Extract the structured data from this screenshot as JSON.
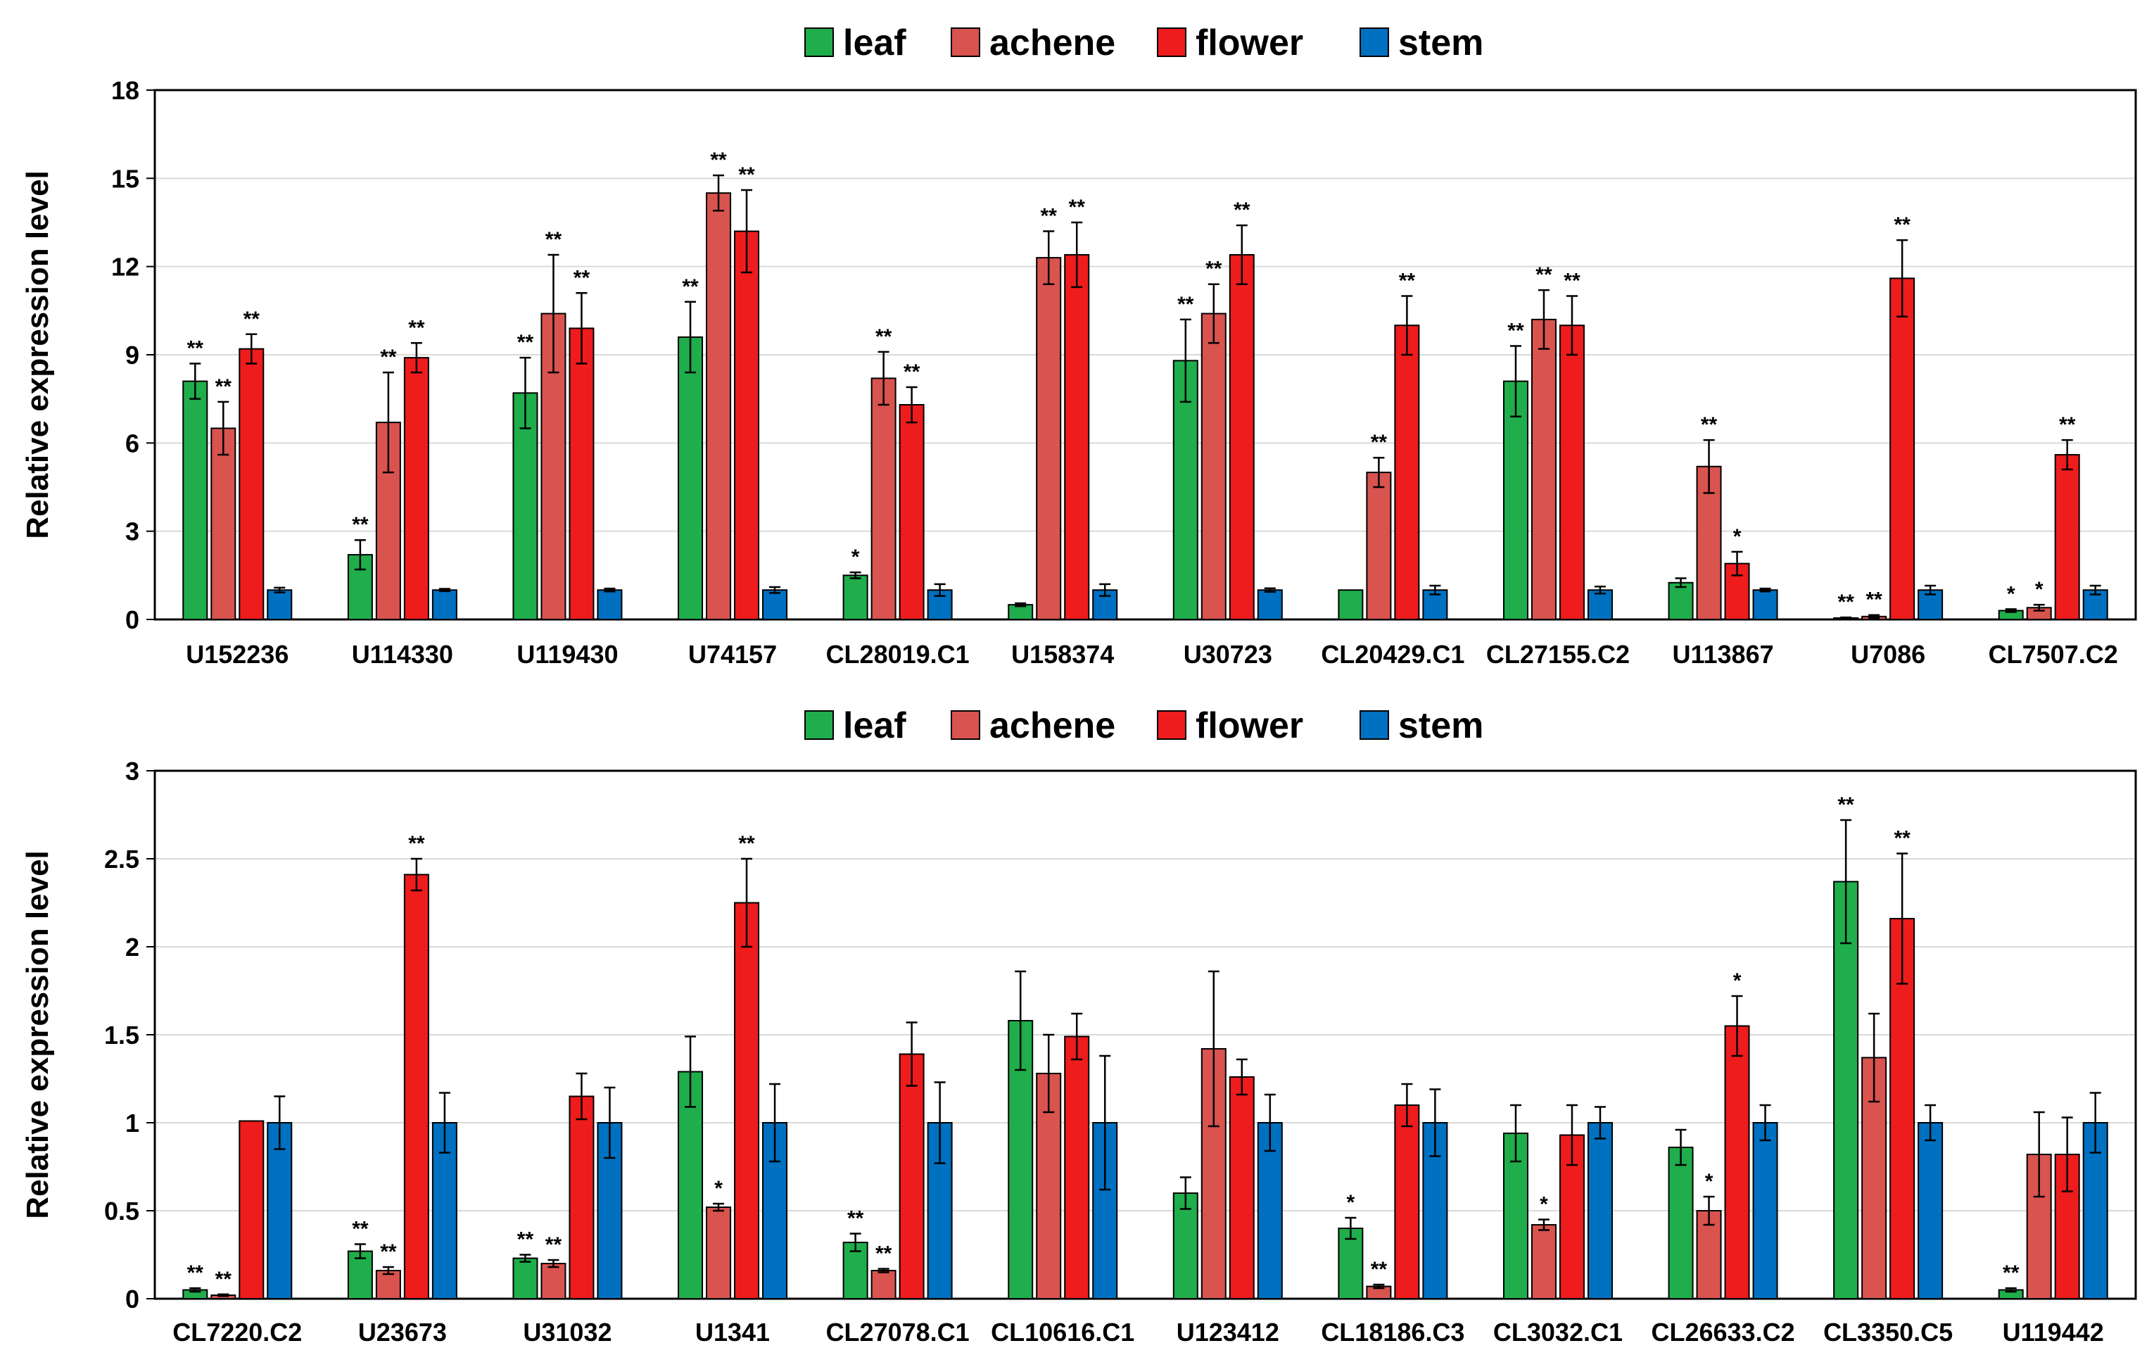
{
  "colors": {
    "leaf": "#1fae4b",
    "achene": "#d9534f",
    "flower": "#ee1c1c",
    "stem": "#0070c0"
  },
  "chart_data": [
    {
      "type": "bar",
      "ylabel": "Relative expression level",
      "ylim": [
        0,
        18
      ],
      "yticks": [
        "0",
        "3",
        "6",
        "9",
        "12",
        "15",
        "18"
      ],
      "ytick_values": [
        0,
        3,
        6,
        9,
        12,
        15,
        18
      ],
      "grid": true,
      "legend": "top",
      "categories": [
        "U152236",
        "U114330",
        "U119430",
        "U74157",
        "CL28019.C1",
        "U158374",
        "U30723",
        "CL20429.C1",
        "CL27155.C2",
        "U113867",
        "U7086",
        "CL7507.C2"
      ],
      "series": [
        {
          "name": "leaf",
          "values": [
            8.1,
            2.2,
            7.7,
            9.6,
            1.5,
            0.5,
            8.8,
            1.0,
            8.1,
            1.25,
            0.05,
            0.3
          ],
          "errors": [
            0.6,
            0.5,
            1.2,
            1.2,
            0.1,
            0.05,
            1.4,
            0.0,
            1.2,
            0.15,
            0.02,
            0.05
          ],
          "sig": [
            "**",
            "**",
            "**",
            "**",
            "*",
            "",
            "**",
            "",
            "**",
            "",
            "**",
            "*"
          ]
        },
        {
          "name": "achene",
          "values": [
            6.5,
            6.7,
            10.4,
            14.5,
            8.2,
            12.3,
            10.4,
            5.0,
            10.2,
            5.2,
            0.1,
            0.4
          ],
          "errors": [
            0.9,
            1.7,
            2.0,
            0.6,
            0.9,
            0.9,
            1.0,
            0.5,
            1.0,
            0.9,
            0.05,
            0.1
          ],
          "sig": [
            "**",
            "**",
            "**",
            "**",
            "**",
            "**",
            "**",
            "**",
            "**",
            "**",
            "**",
            "*"
          ]
        },
        {
          "name": "flower",
          "values": [
            9.2,
            8.9,
            9.9,
            13.2,
            7.3,
            12.4,
            12.4,
            10.0,
            10.0,
            1.9,
            11.6,
            5.6
          ],
          "errors": [
            0.5,
            0.5,
            1.2,
            1.4,
            0.6,
            1.1,
            1.0,
            1.0,
            1.0,
            0.4,
            1.3,
            0.5
          ],
          "sig": [
            "**",
            "**",
            "**",
            "**",
            "**",
            "**",
            "**",
            "**",
            "**",
            "*",
            "**",
            "**"
          ]
        },
        {
          "name": "stem",
          "values": [
            1,
            1,
            1,
            1,
            1,
            1,
            1,
            1,
            1,
            1,
            1,
            1
          ],
          "errors": [
            0.08,
            0.04,
            0.05,
            0.1,
            0.2,
            0.2,
            0.06,
            0.15,
            0.12,
            0.05,
            0.15,
            0.15
          ],
          "sig": [
            "",
            "",
            "",
            "",
            "",
            "",
            "",
            "",
            "",
            "",
            "",
            ""
          ]
        }
      ]
    },
    {
      "type": "bar",
      "ylabel": "Relative expression level",
      "ylim": [
        0,
        3
      ],
      "yticks": [
        "0",
        "0.5",
        "1",
        "1.5",
        "2",
        "2.5",
        "3"
      ],
      "ytick_values": [
        0,
        0.5,
        1,
        1.5,
        2,
        2.5,
        3
      ],
      "grid": true,
      "legend": "top",
      "categories": [
        "CL7220.C2",
        "U23673",
        "U31032",
        "U1341",
        "CL27078.C1",
        "CL10616.C1",
        "U123412",
        "CL18186.C3",
        "CL3032.C1",
        "CL26633.C2",
        "CL3350.C5",
        "U119442"
      ],
      "series": [
        {
          "name": "leaf",
          "values": [
            0.05,
            0.27,
            0.23,
            1.29,
            0.32,
            1.58,
            0.6,
            0.4,
            0.94,
            0.86,
            2.37,
            0.05
          ],
          "errors": [
            0.01,
            0.04,
            0.02,
            0.2,
            0.05,
            0.28,
            0.09,
            0.06,
            0.16,
            0.1,
            0.35,
            0.01
          ],
          "sig": [
            "**",
            "**",
            "**",
            "",
            "**",
            "",
            "",
            "*",
            "",
            "",
            "**",
            "**"
          ]
        },
        {
          "name": "achene",
          "values": [
            0.02,
            0.16,
            0.2,
            0.52,
            0.16,
            1.28,
            1.42,
            0.07,
            0.42,
            0.5,
            1.37,
            0.82
          ],
          "errors": [
            0.005,
            0.02,
            0.02,
            0.02,
            0.01,
            0.22,
            0.44,
            0.01,
            0.03,
            0.08,
            0.25,
            0.24
          ],
          "sig": [
            "**",
            "**",
            "**",
            "*",
            "**",
            "",
            "",
            "**",
            "*",
            "*",
            "",
            ""
          ]
        },
        {
          "name": "flower",
          "values": [
            1.01,
            2.41,
            1.15,
            2.25,
            1.39,
            1.49,
            1.26,
            1.1,
            0.93,
            1.55,
            2.16,
            0.82
          ],
          "errors": [
            0.0,
            0.09,
            0.13,
            0.25,
            0.18,
            0.13,
            0.1,
            0.12,
            0.17,
            0.17,
            0.37,
            0.21
          ],
          "sig": [
            "",
            "**",
            "",
            "**",
            "",
            "",
            "",
            "",
            "",
            "*",
            "**",
            ""
          ]
        },
        {
          "name": "stem",
          "values": [
            1,
            1,
            1,
            1,
            1,
            1,
            1,
            1,
            1,
            1,
            1,
            1
          ],
          "errors": [
            0.15,
            0.17,
            0.2,
            0.22,
            0.23,
            0.38,
            0.16,
            0.19,
            0.09,
            0.1,
            0.1,
            0.17
          ],
          "sig": [
            "",
            "",
            "",
            "",
            "",
            "",
            "",
            "",
            "",
            "",
            "",
            ""
          ]
        }
      ]
    }
  ]
}
